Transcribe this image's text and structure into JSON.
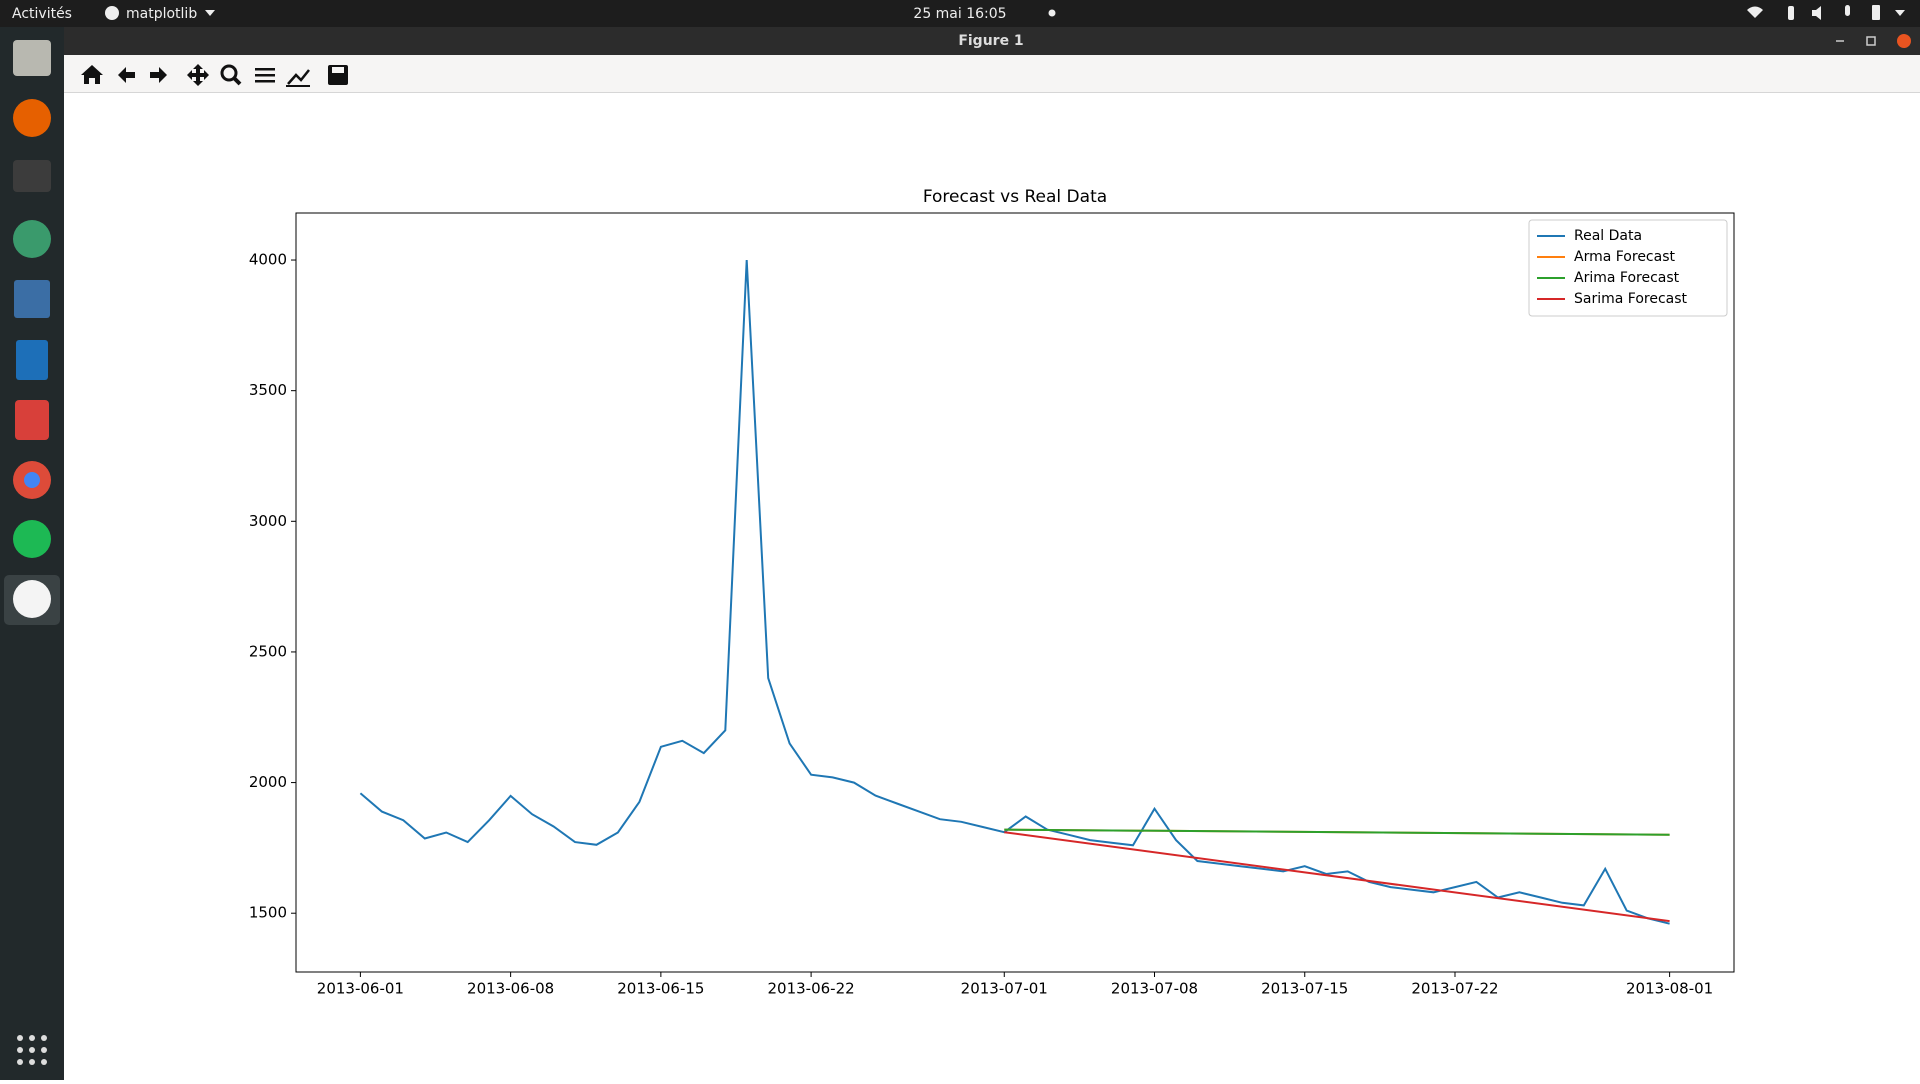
{
  "ui": {
    "activities": "Activités",
    "app_menu": "matplotlib",
    "clock": "25 mai  16:05",
    "window_title": "Figure 1"
  },
  "chart_data": {
    "type": "line",
    "title": "Forecast vs Real Data",
    "xlim": [
      "2013-05-29",
      "2013-08-04"
    ],
    "xticks": [
      "2013-06-01",
      "2013-06-08",
      "2013-06-15",
      "2013-06-22",
      "2013-07-01",
      "2013-07-08",
      "2013-07-15",
      "2013-07-22",
      "2013-08-01"
    ],
    "ylim": [
      1275,
      4180
    ],
    "yticks": [
      1500,
      2000,
      2500,
      3000,
      3500,
      4000
    ],
    "legend": "upper right",
    "series": [
      {
        "name": "Real Data",
        "color": "#1f77b4",
        "x": [
          "2013-06-01",
          "2013-06-02",
          "2013-06-03",
          "2013-06-04",
          "2013-06-05",
          "2013-06-06",
          "2013-06-07",
          "2013-06-08",
          "2013-06-09",
          "2013-06-10",
          "2013-06-11",
          "2013-06-12",
          "2013-06-13",
          "2013-06-14",
          "2013-06-15",
          "2013-06-16",
          "2013-06-17",
          "2013-06-18",
          "2013-06-19",
          "2013-06-20",
          "2013-06-21",
          "2013-06-22",
          "2013-06-23",
          "2013-06-24",
          "2013-06-25",
          "2013-06-26",
          "2013-06-27",
          "2013-06-28",
          "2013-06-29",
          "2013-06-30",
          "2013-07-01",
          "2013-07-02",
          "2013-07-03",
          "2013-07-04",
          "2013-07-05",
          "2013-07-06",
          "2013-07-07",
          "2013-07-08",
          "2013-07-09",
          "2013-07-10",
          "2013-07-11",
          "2013-07-12",
          "2013-07-13",
          "2013-07-14",
          "2013-07-15",
          "2013-07-16",
          "2013-07-17",
          "2013-07-18",
          "2013-07-19",
          "2013-07-20",
          "2013-07-21",
          "2013-07-22",
          "2013-07-23",
          "2013-07-24",
          "2013-07-25",
          "2013-07-26",
          "2013-07-27",
          "2013-07-28",
          "2013-07-29",
          "2013-07-30",
          "2013-07-31",
          "2013-08-01"
        ],
        "values": [
          1959,
          1889,
          1856,
          1786,
          1809,
          1772,
          1856,
          1949,
          1879,
          1832,
          1772,
          1762,
          1809,
          1926,
          2137,
          2160,
          2113,
          2200,
          4000,
          2400,
          2150,
          2030,
          2020,
          2000,
          1950,
          1920,
          1890,
          1860,
          1850,
          1830,
          1810,
          1870,
          1820,
          1800,
          1780,
          1770,
          1760,
          1900,
          1780,
          1700,
          1690,
          1680,
          1670,
          1660,
          1680,
          1650,
          1660,
          1620,
          1600,
          1590,
          1580,
          1600,
          1620,
          1560,
          1580,
          1560,
          1540,
          1530,
          1670,
          1510,
          1480,
          1460
        ]
      },
      {
        "name": "Arma Forecast",
        "color": "#ff7f0e",
        "x": [
          "2013-07-01",
          "2013-08-01"
        ],
        "values": [
          1820,
          1800
        ]
      },
      {
        "name": "Arima Forecast",
        "color": "#2ca02c",
        "x": [
          "2013-07-01",
          "2013-08-01"
        ],
        "values": [
          1820,
          1800
        ]
      },
      {
        "name": "Sarima Forecast",
        "color": "#d62728",
        "x": [
          "2013-07-01",
          "2013-08-01"
        ],
        "values": [
          1810,
          1470
        ]
      }
    ]
  }
}
